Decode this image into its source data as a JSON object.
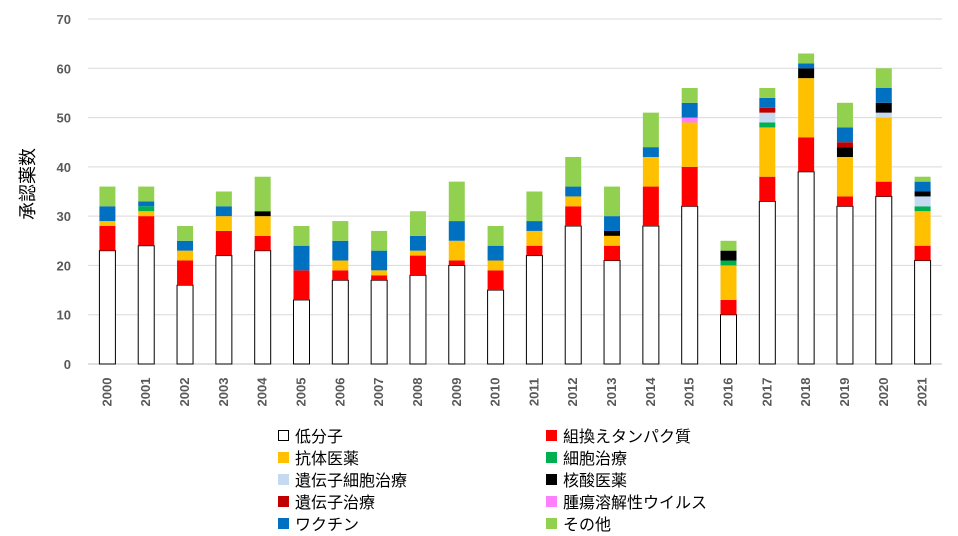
{
  "chart_data": {
    "type": "bar",
    "stacked": true,
    "ylabel": "承認薬数",
    "ylim": [
      0,
      70
    ],
    "yticks": [
      0,
      10,
      20,
      30,
      40,
      50,
      60,
      70
    ],
    "grid": true,
    "legend_position": "bottom",
    "categories": [
      "2000",
      "2001",
      "2002",
      "2003",
      "2004",
      "2005",
      "2006",
      "2007",
      "2008",
      "2009",
      "2010",
      "2011",
      "2012",
      "2013",
      "2014",
      "2015",
      "2016",
      "2017",
      "2018",
      "2019",
      "2020",
      "2021"
    ],
    "series": [
      {
        "name": "低分子",
        "color": "#FFFFFF",
        "values": [
          23,
          24,
          16,
          22,
          23,
          13,
          17,
          17,
          18,
          20,
          15,
          22,
          28,
          21,
          28,
          32,
          10,
          33,
          39,
          32,
          34,
          21
        ]
      },
      {
        "name": "組換えタンパク質",
        "color": "#FF0000",
        "values": [
          5,
          6,
          5,
          5,
          3,
          6,
          2,
          1,
          4,
          1,
          4,
          2,
          4,
          3,
          8,
          8,
          3,
          5,
          7,
          2,
          3,
          3
        ]
      },
      {
        "name": "抗体医薬",
        "color": "#FFC000",
        "values": [
          1,
          1,
          2,
          3,
          4,
          0,
          2,
          1,
          1,
          4,
          2,
          3,
          2,
          2,
          6,
          9,
          7,
          10,
          12,
          8,
          13,
          7
        ]
      },
      {
        "name": "細胞治療",
        "color": "#00B050",
        "values": [
          0,
          1,
          0,
          0,
          0,
          0,
          0,
          0,
          0,
          0,
          0,
          0,
          0,
          0,
          0,
          0,
          1,
          1,
          0,
          0,
          0,
          1
        ]
      },
      {
        "name": "遺伝子細胞治療",
        "color": "#C5D9F1",
        "values": [
          0,
          0,
          0,
          0,
          0,
          0,
          0,
          0,
          0,
          0,
          0,
          0,
          0,
          0,
          0,
          0,
          0,
          2,
          0,
          0,
          1,
          2
        ]
      },
      {
        "name": "核酸医薬",
        "color": "#000000",
        "values": [
          0,
          0,
          0,
          0,
          1,
          0,
          0,
          0,
          0,
          0,
          0,
          0,
          0,
          1,
          0,
          0,
          2,
          0,
          2,
          2,
          2,
          1
        ]
      },
      {
        "name": "遺伝子治療",
        "color": "#C00000",
        "values": [
          0,
          0,
          0,
          0,
          0,
          0,
          0,
          0,
          0,
          0,
          0,
          0,
          0,
          0,
          0,
          0,
          0,
          1,
          0,
          1,
          0,
          0
        ]
      },
      {
        "name": "腫瘍溶解性ウイルス",
        "color": "#FF80FF",
        "values": [
          0,
          0,
          0,
          0,
          0,
          0,
          0,
          0,
          0,
          0,
          0,
          0,
          0,
          0,
          0,
          1,
          0,
          0,
          0,
          0,
          0,
          0
        ]
      },
      {
        "name": "ワクチン",
        "color": "#0070C0",
        "values": [
          3,
          1,
          2,
          2,
          0,
          5,
          4,
          4,
          3,
          4,
          3,
          2,
          2,
          3,
          2,
          3,
          0,
          2,
          1,
          3,
          3,
          2
        ]
      },
      {
        "name": "その他",
        "color": "#92D050",
        "values": [
          4,
          3,
          3,
          3,
          7,
          4,
          4,
          4,
          5,
          8,
          4,
          6,
          6,
          6,
          7,
          3,
          2,
          2,
          2,
          5,
          4,
          1
        ]
      }
    ]
  }
}
